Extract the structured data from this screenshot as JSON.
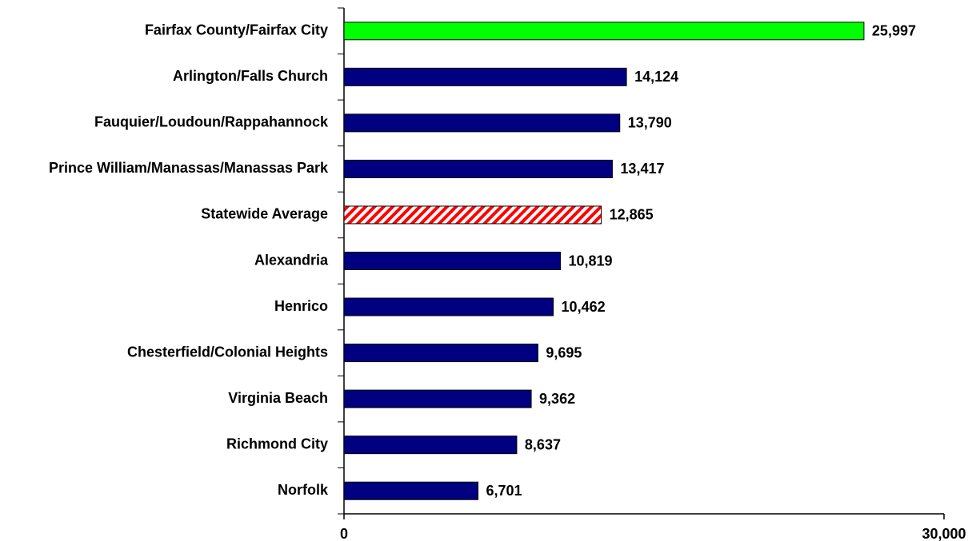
{
  "chart_data": {
    "type": "bar",
    "orientation": "horizontal",
    "categories": [
      "Fairfax County/Fairfax City",
      "Arlington/Falls Church",
      "Fauquier/Loudoun/Rappahannock",
      "Prince William/Manassas/Manassas Park",
      "Statewide Average",
      "Alexandria",
      "Henrico",
      "Chesterfield/Colonial Heights",
      "Virginia Beach",
      "Richmond City",
      "Norfolk"
    ],
    "values": [
      25997,
      14124,
      13790,
      13417,
      12865,
      10819,
      10462,
      9695,
      9362,
      8637,
      6701
    ],
    "value_labels": [
      "25,997",
      "14,124",
      "13,790",
      "13,417",
      "12,865",
      "10,819",
      "10,462",
      "9,695",
      "9,362",
      "8,637",
      "6,701"
    ],
    "colors": [
      "#00ff00",
      "#000080",
      "#000080",
      "#000080",
      "#ff0000",
      "#000080",
      "#000080",
      "#000080",
      "#000080",
      "#000080",
      "#000080"
    ],
    "patterns": [
      "solid",
      "solid",
      "solid",
      "solid",
      "hatch",
      "solid",
      "solid",
      "solid",
      "solid",
      "solid",
      "solid"
    ],
    "xlim": [
      0,
      30000
    ],
    "xticks": [
      0,
      {
        "value": 30000,
        "label": "30,000"
      }
    ]
  }
}
